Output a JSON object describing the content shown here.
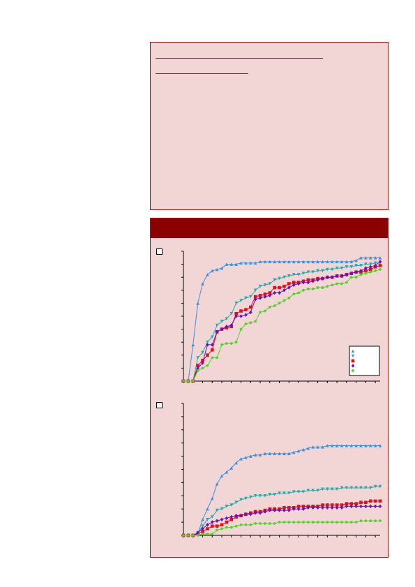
{
  "info_box": {
    "header_line_1": "",
    "header_line_2": "",
    "body_text": ""
  },
  "panel": {
    "title": ""
  },
  "colors": {
    "series_blue": "#3b8fe0",
    "series_teal": "#27a9a9",
    "series_red": "#e0101f",
    "series_purple": "#6c0fc0",
    "series_green": "#57d12a",
    "panel_bg": "#f2d6d6",
    "header_bg": "#8b0000",
    "border": "#9c1a1a"
  },
  "chart_data": [
    {
      "type": "line",
      "title": "",
      "xlabel": "",
      "ylabel": "",
      "grid": false,
      "legend": "bottom-right",
      "x": [
        0,
        1,
        2,
        3,
        4,
        5,
        6,
        7,
        8,
        9,
        10,
        11,
        12,
        13,
        14,
        15,
        16,
        17,
        18,
        19,
        20,
        21,
        22,
        23,
        24,
        25,
        26,
        27,
        28,
        29,
        30,
        31,
        32,
        33,
        34,
        35,
        36,
        37,
        38,
        39,
        40,
        41
      ],
      "ylim": [
        0,
        100
      ],
      "series": [
        {
          "marker": "triangle-up",
          "color": "#3b8fe0",
          "values": [
            0,
            0,
            28,
            60,
            75,
            82,
            85,
            86,
            87,
            90,
            90,
            90,
            91,
            91,
            91,
            91,
            92,
            92,
            92,
            92,
            92,
            92,
            92,
            92,
            92,
            92,
            92,
            92,
            92,
            92,
            92,
            92,
            92,
            92,
            92,
            92,
            93,
            95,
            95,
            95,
            95,
            95
          ]
        },
        {
          "marker": "triangle-down",
          "color": "#27a9a9",
          "values": [
            0,
            0,
            0,
            18,
            22,
            30,
            34,
            43,
            46,
            48,
            52,
            60,
            62,
            64,
            65,
            70,
            73,
            74,
            75,
            78,
            79,
            80,
            81,
            82,
            82,
            83,
            84,
            84,
            85,
            85,
            86,
            86,
            87,
            87,
            88,
            88,
            89,
            89,
            90,
            90,
            91,
            91
          ]
        },
        {
          "marker": "square",
          "color": "#e0101f",
          "values": [
            0,
            0,
            0,
            12,
            16,
            20,
            24,
            38,
            40,
            41,
            42,
            52,
            54,
            55,
            57,
            65,
            66,
            67,
            68,
            72,
            72,
            73,
            75,
            76,
            76,
            77,
            78,
            78,
            79,
            79,
            80,
            80,
            81,
            81,
            82,
            83,
            84,
            84,
            85,
            86,
            88,
            89
          ]
        },
        {
          "marker": "diamond",
          "color": "#6c0fc0",
          "values": [
            0,
            0,
            0,
            10,
            14,
            28,
            28,
            38,
            40,
            42,
            43,
            50,
            50,
            51,
            53,
            63,
            64,
            65,
            66,
            68,
            68,
            70,
            72,
            74,
            75,
            76,
            76,
            77,
            78,
            79,
            80,
            80,
            81,
            81,
            82,
            83,
            84,
            85,
            87,
            88,
            89,
            92
          ]
        },
        {
          "marker": "circle",
          "color": "#57d12a",
          "values": [
            0,
            0,
            0,
            8,
            10,
            12,
            18,
            18,
            28,
            29,
            29,
            30,
            40,
            44,
            45,
            46,
            53,
            54,
            57,
            58,
            60,
            62,
            64,
            67,
            68,
            70,
            71,
            71,
            72,
            72,
            73,
            74,
            75,
            75,
            76,
            80,
            80,
            82,
            83,
            84,
            85,
            86
          ]
        }
      ]
    },
    {
      "type": "line",
      "title": "",
      "xlabel": "",
      "ylabel": "",
      "grid": false,
      "x": [
        0,
        1,
        2,
        3,
        4,
        5,
        6,
        7,
        8,
        9,
        10,
        11,
        12,
        13,
        14,
        15,
        16,
        17,
        18,
        19,
        20,
        21,
        22,
        23,
        24,
        25,
        26,
        27,
        28,
        29,
        30,
        31,
        32,
        33,
        34,
        35,
        36,
        37,
        38,
        39,
        40,
        41
      ],
      "ylim": [
        0,
        100
      ],
      "series": [
        {
          "marker": "triangle-up",
          "color": "#3b8fe0",
          "values": [
            0,
            0,
            0,
            1,
            12,
            20,
            28,
            39,
            45,
            48,
            51,
            55,
            58,
            59,
            60,
            61,
            61,
            62,
            62,
            62,
            62,
            62,
            62,
            63,
            64,
            65,
            66,
            67,
            67,
            67,
            68,
            68,
            68,
            68,
            68,
            68,
            68,
            68,
            68,
            68,
            68,
            68
          ]
        },
        {
          "marker": "triangle-down",
          "color": "#27a9a9",
          "values": [
            0,
            0,
            0,
            2,
            7,
            12,
            14,
            19,
            20,
            22,
            23,
            25,
            27,
            28,
            29,
            30,
            30,
            30,
            31,
            31,
            32,
            32,
            32,
            33,
            33,
            33,
            34,
            34,
            34,
            35,
            35,
            35,
            35,
            36,
            36,
            36,
            36,
            36,
            36,
            36,
            37,
            37
          ]
        },
        {
          "marker": "square",
          "color": "#e0101f",
          "values": [
            0,
            0,
            0,
            1,
            3,
            5,
            7,
            7,
            8,
            10,
            12,
            14,
            15,
            16,
            17,
            18,
            18,
            19,
            20,
            20,
            20,
            21,
            21,
            21,
            22,
            22,
            22,
            22,
            22,
            23,
            23,
            23,
            23,
            23,
            24,
            24,
            24,
            25,
            25,
            26,
            26,
            26
          ]
        },
        {
          "marker": "diamond",
          "color": "#6c0fc0",
          "values": [
            0,
            0,
            0,
            2,
            5,
            8,
            10,
            11,
            12,
            13,
            14,
            15,
            15,
            16,
            16,
            17,
            17,
            18,
            19,
            19,
            19,
            19,
            19,
            20,
            20,
            20,
            21,
            21,
            21,
            21,
            21,
            21,
            21,
            21,
            22,
            22,
            22,
            22,
            22,
            22,
            22,
            22
          ]
        },
        {
          "marker": "circle",
          "color": "#57d12a",
          "values": [
            0,
            0,
            0,
            0,
            1,
            1,
            1,
            4,
            5,
            6,
            6,
            7,
            8,
            8,
            8,
            9,
            9,
            9,
            9,
            9,
            10,
            10,
            10,
            10,
            10,
            10,
            10,
            10,
            10,
            10,
            10,
            10,
            10,
            10,
            10,
            10,
            10,
            11,
            11,
            11,
            11,
            11
          ]
        }
      ]
    }
  ]
}
